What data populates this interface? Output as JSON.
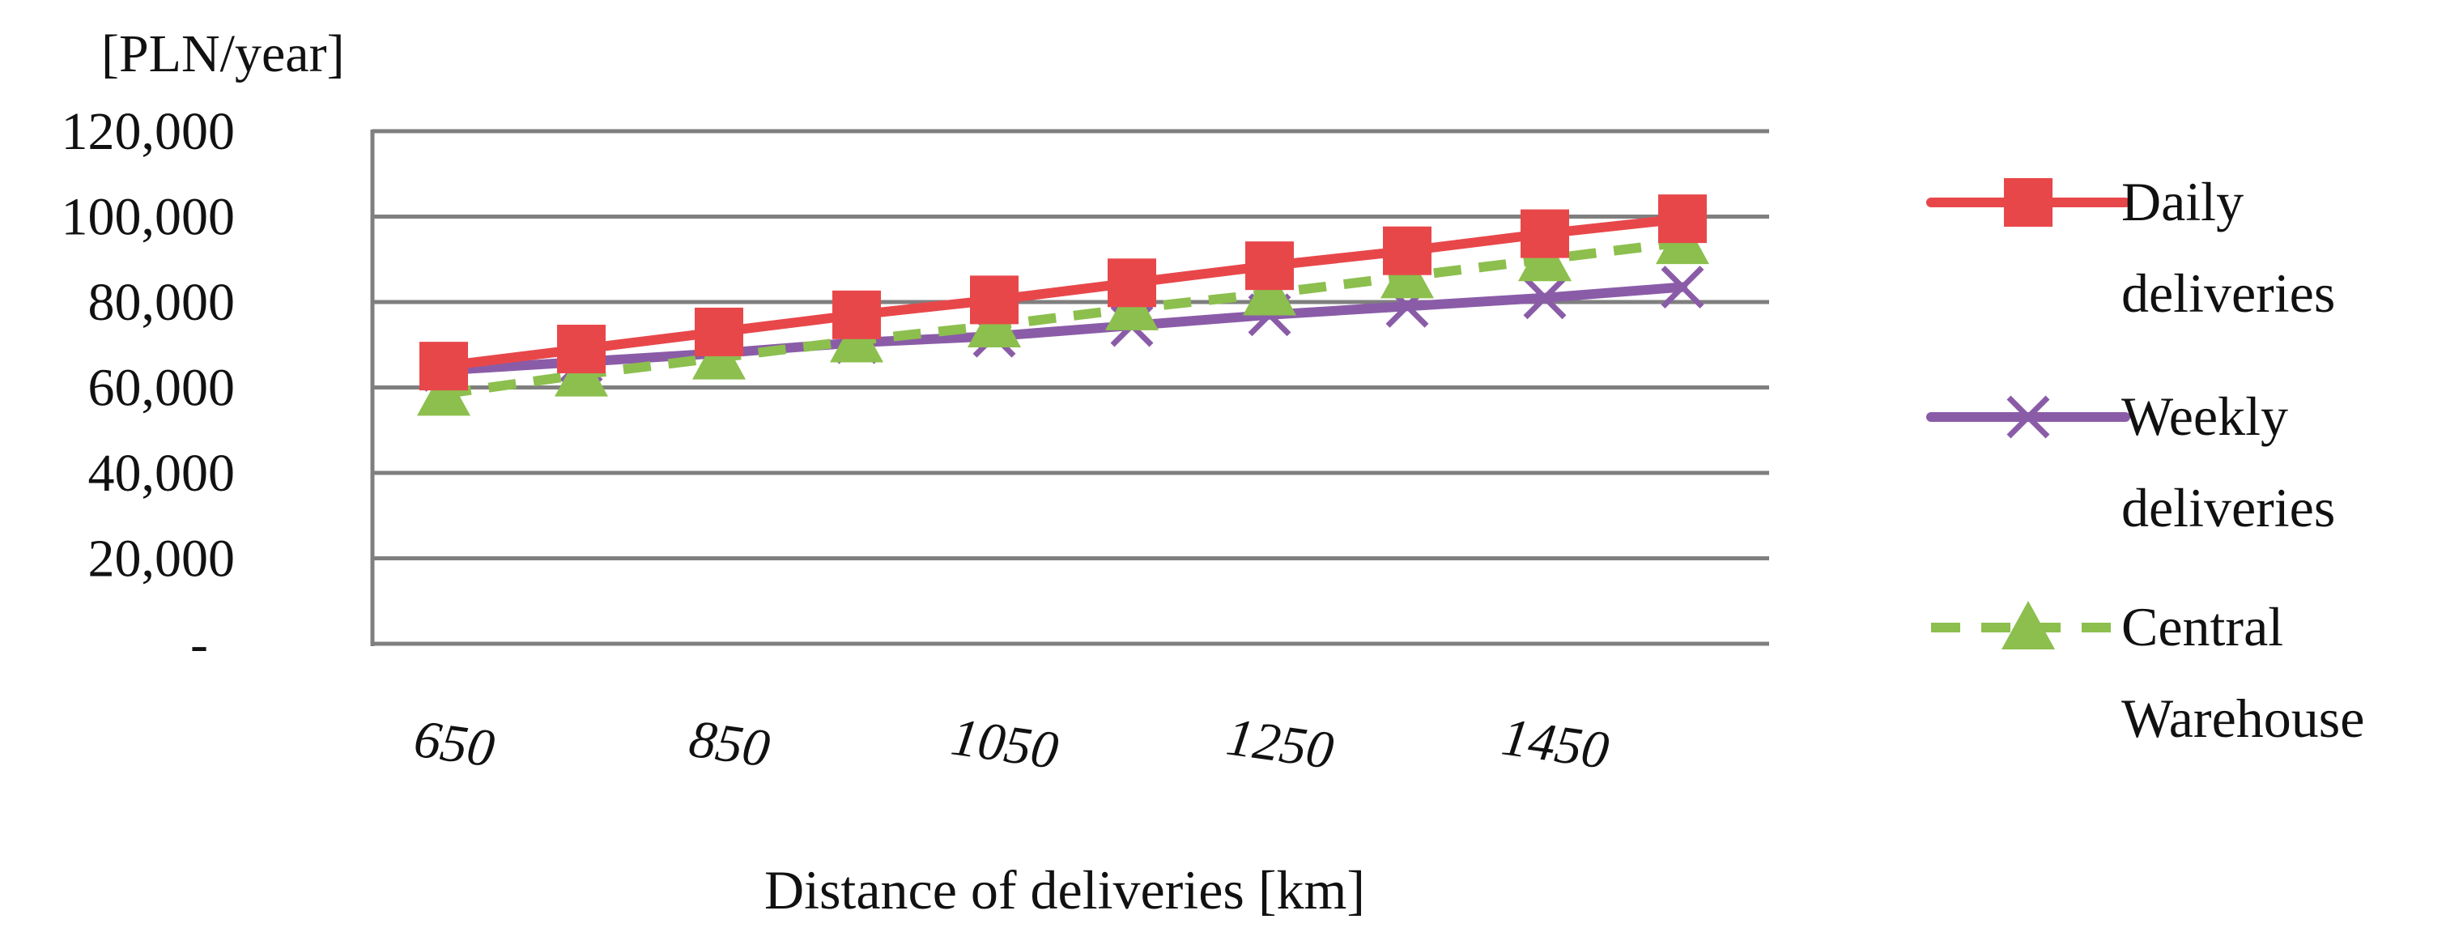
{
  "chart_data": {
    "type": "line",
    "title": "",
    "ylabel": "[PLN/year]",
    "xlabel": "Distance of deliveries [km]",
    "x": [
      650,
      750,
      850,
      950,
      1050,
      1150,
      1250,
      1350,
      1450,
      1550
    ],
    "x_tick_labels": [
      "650",
      "850",
      "1050",
      "1250",
      "1450"
    ],
    "x_tick_values": [
      650,
      850,
      1050,
      1250,
      1450
    ],
    "ylim": [
      0,
      120000
    ],
    "y_ticks": [
      0,
      20000,
      40000,
      60000,
      80000,
      100000,
      120000
    ],
    "y_tick_labels": [
      "-",
      "20,000",
      "40,000",
      "60,000",
      "80,000",
      "100,000",
      "120,000"
    ],
    "grid": true,
    "legend_position": "right",
    "series": [
      {
        "name": "Daily deliveries",
        "legend_lines": [
          "Daily",
          "deliveries"
        ],
        "color": "#e8474a",
        "marker": "square",
        "dash": "solid",
        "values": [
          65000,
          69000,
          73000,
          77000,
          80500,
          84500,
          88500,
          92000,
          96000,
          99500
        ]
      },
      {
        "name": "Weekly deliveries",
        "legend_lines": [
          "Weekly",
          "deliveries"
        ],
        "color": "#8a5ca8",
        "marker": "x",
        "dash": "solid",
        "values": [
          64000,
          66000,
          68000,
          70500,
          72000,
          74500,
          77000,
          79000,
          81000,
          83500
        ]
      },
      {
        "name": "Central Warehouse",
        "legend_lines": [
          "Central",
          "Warehouse"
        ],
        "color": "#8cbf4d",
        "marker": "triangle",
        "dash": "dashed",
        "values": [
          58500,
          63000,
          67000,
          71000,
          74500,
          78500,
          82000,
          86000,
          90000,
          94000
        ]
      }
    ]
  }
}
